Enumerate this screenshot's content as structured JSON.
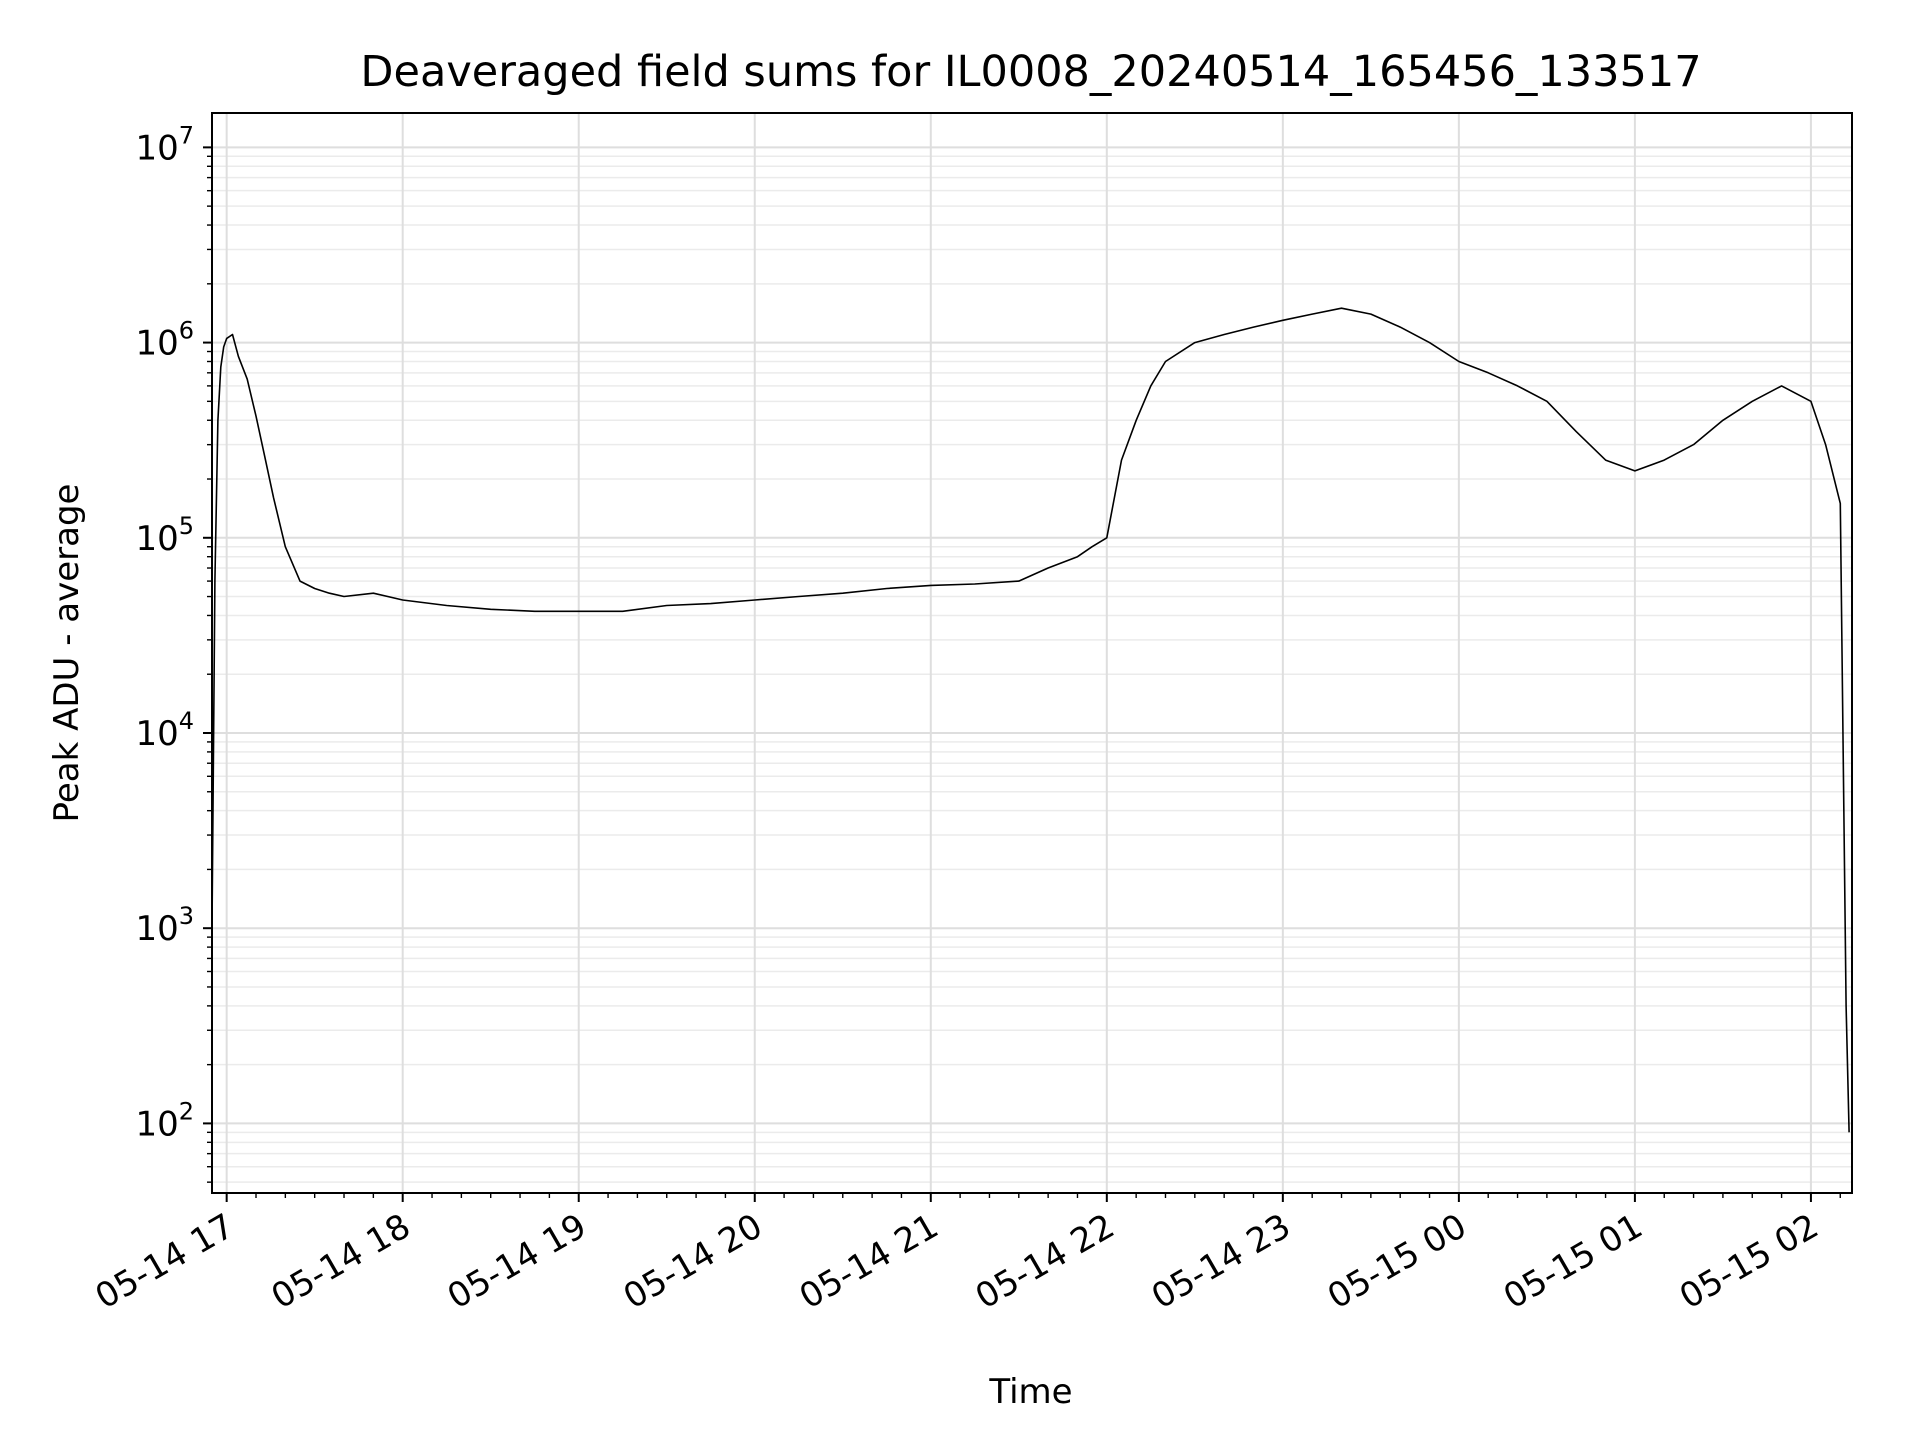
{
  "chart_data": {
    "type": "line",
    "title": "Deaveraged field sums for IL0008_20240514_165456_133517",
    "xlabel": "Time",
    "ylabel": "Peak ADU - average",
    "y_scale": "log",
    "ylim": [
      44,
      15000000
    ],
    "xlim": [
      "05-14 16:55",
      "05-15 02:14"
    ],
    "grid": true,
    "grid_minor": true,
    "line_color": "#000000",
    "x_ticks": [
      {
        "label": "05-14 17",
        "x": "05-14 17:00"
      },
      {
        "label": "05-14 18",
        "x": "05-14 18:00"
      },
      {
        "label": "05-14 19",
        "x": "05-14 19:00"
      },
      {
        "label": "05-14 20",
        "x": "05-14 20:00"
      },
      {
        "label": "05-14 21",
        "x": "05-14 21:00"
      },
      {
        "label": "05-14 22",
        "x": "05-14 22:00"
      },
      {
        "label": "05-14 23",
        "x": "05-14 23:00"
      },
      {
        "label": "05-15 00",
        "x": "05-15 00:00"
      },
      {
        "label": "05-15 01",
        "x": "05-15 01:00"
      },
      {
        "label": "05-15 02",
        "x": "05-15 02:00"
      }
    ],
    "y_ticks": [
      {
        "base": "10",
        "exp": "2",
        "value": 100
      },
      {
        "base": "10",
        "exp": "3",
        "value": 1000
      },
      {
        "base": "10",
        "exp": "4",
        "value": 10000
      },
      {
        "base": "10",
        "exp": "5",
        "value": 100000
      },
      {
        "base": "10",
        "exp": "6",
        "value": 1000000
      },
      {
        "base": "10",
        "exp": "7",
        "value": 10000000
      }
    ],
    "series": [
      {
        "x": [
          "05-14 16:55",
          "05-14 16:56",
          "05-14 16:57",
          "05-14 16:58",
          "05-14 16:59",
          "05-14 17:00",
          "05-14 17:02",
          "05-14 17:04",
          "05-14 17:07",
          "05-14 17:10",
          "05-14 17:13",
          "05-14 17:16",
          "05-14 17:20",
          "05-14 17:25",
          "05-14 17:30",
          "05-14 17:35",
          "05-14 17:40",
          "05-14 17:50",
          "05-14 18:00",
          "05-14 18:15",
          "05-14 18:30",
          "05-14 18:45",
          "05-14 19:00",
          "05-14 19:15",
          "05-14 19:30",
          "05-14 19:45",
          "05-14 20:00",
          "05-14 20:15",
          "05-14 20:30",
          "05-14 20:45",
          "05-14 21:00",
          "05-14 21:15",
          "05-14 21:30",
          "05-14 21:40",
          "05-14 21:50",
          "05-14 21:55",
          "05-14 22:00",
          "05-14 22:05",
          "05-14 22:10",
          "05-14 22:15",
          "05-14 22:20",
          "05-14 22:30",
          "05-14 22:40",
          "05-14 22:50",
          "05-14 23:00",
          "05-14 23:10",
          "05-14 23:20",
          "05-14 23:30",
          "05-14 23:40",
          "05-14 23:50",
          "05-15 00:00",
          "05-15 00:10",
          "05-15 00:20",
          "05-15 00:30",
          "05-15 00:40",
          "05-15 00:50",
          "05-15 01:00",
          "05-15 01:10",
          "05-15 01:20",
          "05-15 01:30",
          "05-15 01:40",
          "05-15 01:50",
          "05-15 02:00",
          "05-15 02:05",
          "05-15 02:10",
          "05-15 02:12",
          "05-15 02:13"
        ],
        "y": [
          1000,
          60000,
          400000,
          750000,
          950000,
          1050000,
          1100000,
          850000,
          650000,
          420000,
          260000,
          160000,
          90000,
          60000,
          55000,
          52000,
          50000,
          52000,
          48000,
          45000,
          43000,
          42000,
          42000,
          42000,
          45000,
          46000,
          48000,
          50000,
          52000,
          55000,
          57000,
          58000,
          60000,
          70000,
          80000,
          90000,
          100000,
          250000,
          400000,
          600000,
          800000,
          1000000,
          1100000,
          1200000,
          1300000,
          1400000,
          1500000,
          1400000,
          1200000,
          1000000,
          800000,
          700000,
          600000,
          500000,
          350000,
          250000,
          220000,
          250000,
          300000,
          400000,
          500000,
          600000,
          500000,
          300000,
          150000,
          400,
          90
        ]
      }
    ]
  }
}
